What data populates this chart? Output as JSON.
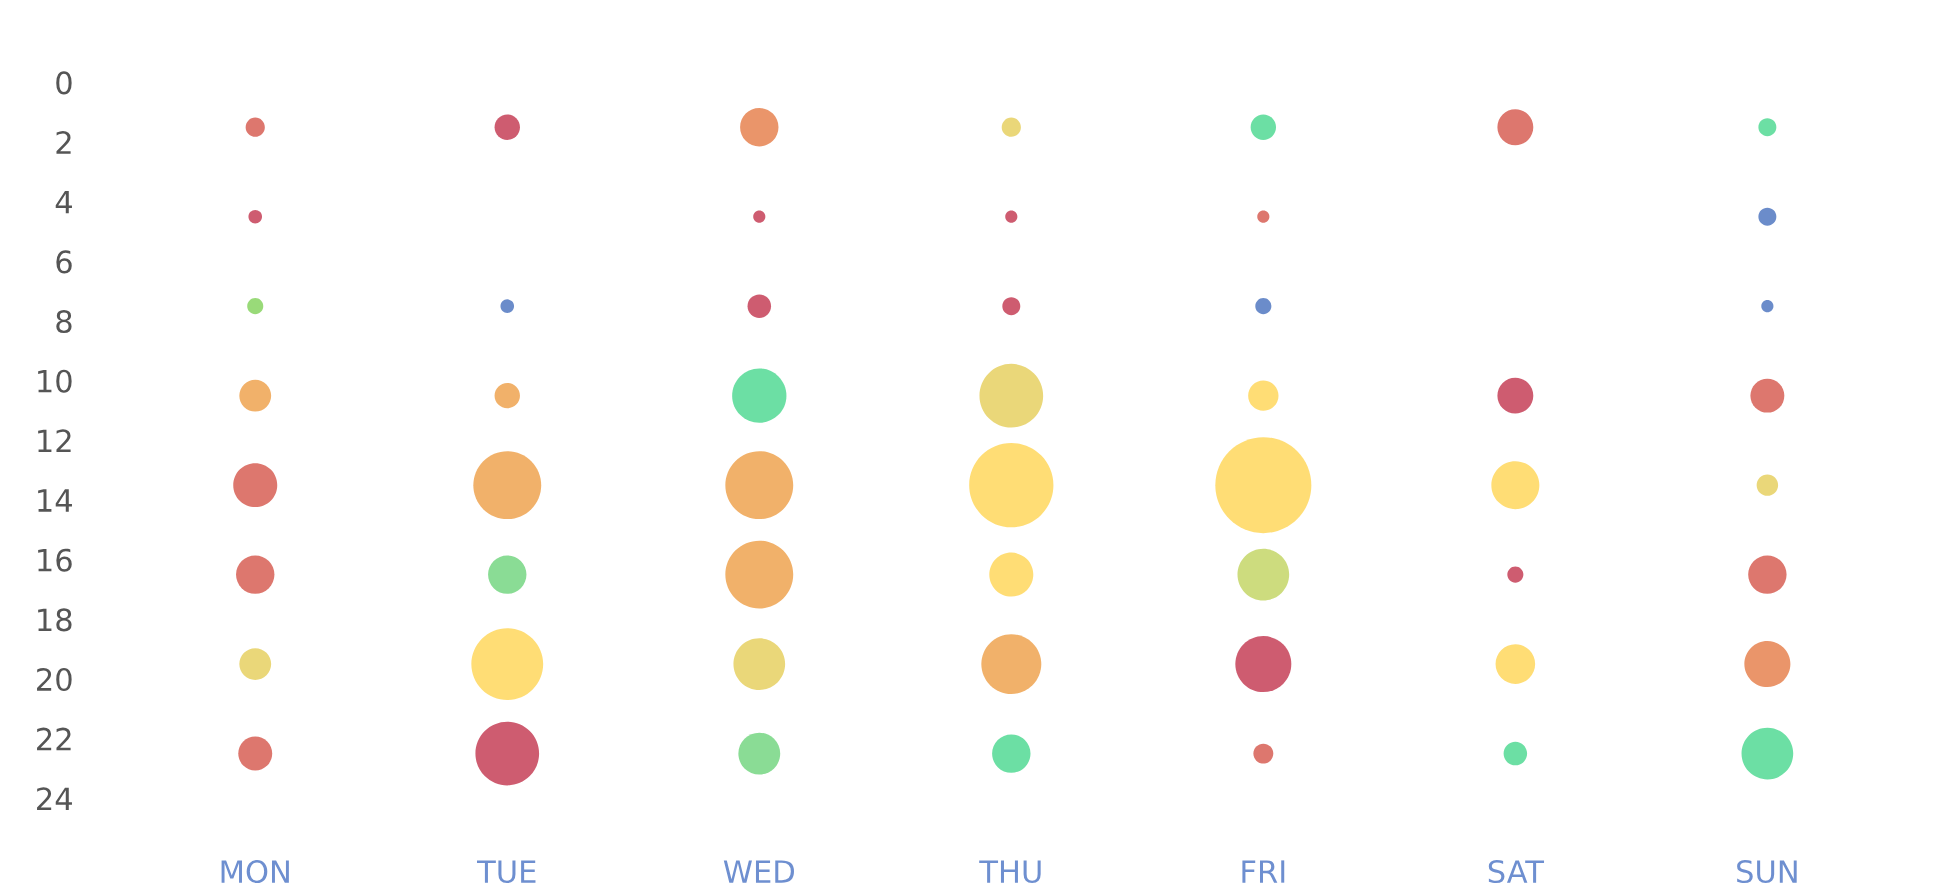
{
  "chart_data": {
    "type": "bubble",
    "categories": [
      "MON",
      "TUE",
      "WED",
      "THU",
      "FRI",
      "SAT",
      "SUN"
    ],
    "ylim": [
      24,
      0
    ],
    "yticks": [
      0,
      2,
      4,
      6,
      8,
      10,
      12,
      14,
      16,
      18,
      20,
      22,
      24
    ],
    "grid": false,
    "series": [
      {
        "values": [
          1.5,
          1.5,
          1.5,
          1.5,
          1.5,
          1.5,
          1.5
        ],
        "sizes": [
          0.04,
          0.07,
          0.16,
          0.04,
          0.07,
          0.14,
          0.035
        ],
        "colors": [
          "#d9685e",
          "#c94a60",
          "#e8895a",
          "#e8d36a",
          "#5cdb9a",
          "#d9685e",
          "#5cdb9a"
        ]
      },
      {
        "values": [
          4.5,
          null,
          4.5,
          4.5,
          4.5,
          null,
          4.5
        ],
        "sizes": [
          0.02,
          null,
          0.016,
          0.016,
          0.016,
          null,
          0.035
        ],
        "colors": [
          "#c94a60",
          null,
          "#c94a60",
          "#c94a60",
          "#d9685e",
          null,
          "#5b7fc4"
        ]
      },
      {
        "values": [
          7.5,
          7.5,
          7.5,
          7.5,
          7.5,
          null,
          7.5
        ],
        "sizes": [
          0.028,
          0.02,
          0.06,
          0.035,
          0.028,
          null,
          0.016
        ],
        "colors": [
          "#8ed66a",
          "#5b7fc4",
          "#c94a60",
          "#c94a60",
          "#5b7fc4",
          null,
          "#5b7fc4"
        ]
      },
      {
        "values": [
          10.5,
          10.5,
          10.5,
          10.5,
          10.5,
          10.5,
          10.5
        ],
        "sizes": [
          0.11,
          0.07,
          0.32,
          0.44,
          0.1,
          0.14,
          0.125
        ],
        "colors": [
          "#f0a95a",
          "#f0a95a",
          "#5cdb9a",
          "#e8d36a",
          "#ffd966",
          "#c94a60",
          "#d9685e"
        ]
      },
      {
        "values": [
          13.5,
          13.5,
          13.5,
          13.5,
          13.5,
          13.5,
          13.5
        ],
        "sizes": [
          0.21,
          0.5,
          0.5,
          0.77,
          1,
          0.25,
          0.05
        ],
        "colors": [
          "#d9685e",
          "#f0a95a",
          "#f0a95a",
          "#ffd966",
          "#ffd966",
          "#ffd966",
          "#e8d36a"
        ]
      },
      {
        "values": [
          16.5,
          16.5,
          16.5,
          16.5,
          16.5,
          16.5,
          16.5
        ],
        "sizes": [
          0.16,
          0.16,
          0.5,
          0.21,
          0.29,
          0.028,
          0.16
        ],
        "colors": [
          "#d9685e",
          "#7dd88a",
          "#f0a95a",
          "#ffd966",
          "#c8d870",
          "#c94a60",
          "#d9685e"
        ]
      },
      {
        "values": [
          19.5,
          19.5,
          19.5,
          19.5,
          19.5,
          19.5,
          19.5
        ],
        "sizes": [
          0.11,
          0.56,
          0.29,
          0.39,
          0.34,
          0.17,
          0.23
        ],
        "colors": [
          "#e8d36a",
          "#ffd966",
          "#e8d36a",
          "#f0a95a",
          "#c94a60",
          "#ffd966",
          "#e8895a"
        ]
      },
      {
        "values": [
          22.5,
          22.5,
          22.5,
          22.5,
          22.5,
          22.5,
          22.5
        ],
        "sizes": [
          0.125,
          0.44,
          0.19,
          0.16,
          0.043,
          0.06,
          0.29
        ],
        "colors": [
          "#d9685e",
          "#c94a60",
          "#7dd88a",
          "#5cdb9a",
          "#d9685e",
          "#5cdb9a",
          "#5cdb9a"
        ]
      }
    ]
  }
}
